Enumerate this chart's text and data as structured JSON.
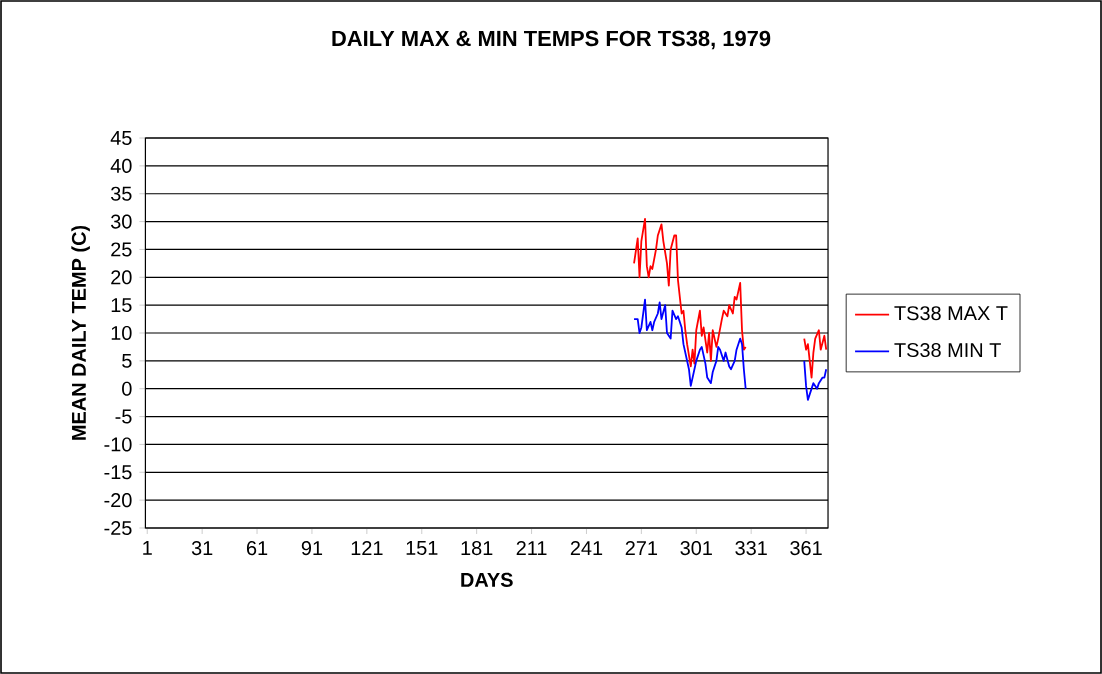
{
  "chart_data": {
    "type": "line",
    "title": "DAILY MAX & MIN TEMPS FOR TS38, 1979",
    "xlabel": "DAYS",
    "ylabel": "MEAN DAILY TEMP (C)",
    "xlim": [
      0,
      373
    ],
    "xticks": [
      1,
      31,
      61,
      91,
      121,
      151,
      181,
      211,
      241,
      271,
      301,
      331,
      361
    ],
    "ylim": [
      -25,
      45
    ],
    "yticks": [
      -25,
      -20,
      -15,
      -10,
      -5,
      0,
      5,
      10,
      15,
      20,
      25,
      30,
      35,
      40,
      45
    ],
    "grid": "y",
    "legend": "right",
    "marker": "none",
    "line_style": "solid",
    "series": [
      {
        "name": "TS38 MAX T",
        "color": "#ff0000",
        "x": [
          267,
          269,
          270,
          271,
          273,
          274,
          275,
          276,
          277,
          279,
          280,
          282,
          283,
          285,
          286,
          287,
          289,
          290,
          291,
          293,
          294,
          295,
          296,
          298,
          299,
          300,
          301,
          303,
          304,
          305,
          307,
          308,
          309,
          310,
          312,
          313,
          315,
          316,
          318,
          319,
          321,
          322,
          323,
          325,
          326,
          327,
          328,
          340,
          360,
          361,
          362,
          364,
          365,
          366,
          368,
          369,
          371,
          372
        ],
        "values": [
          22.5,
          27,
          20,
          26.5,
          30.5,
          22,
          20,
          22,
          21.5,
          25,
          27.5,
          29.5,
          26.5,
          22.5,
          18.5,
          25,
          27.5,
          27.5,
          19.5,
          13.5,
          14,
          10.5,
          8,
          4,
          7,
          4.5,
          10.5,
          14,
          9.5,
          11,
          6.5,
          10,
          5,
          10.5,
          7.5,
          9,
          12.5,
          14,
          13,
          15,
          13.5,
          16.5,
          16,
          19,
          10.5,
          7,
          7.5,
          null,
          9,
          7,
          8,
          2,
          6.5,
          9,
          10.5,
          7,
          9.5,
          7
        ]
      },
      {
        "name": "TS38 MIN T",
        "color": "#0000ff",
        "x": [
          267,
          269,
          270,
          271,
          273,
          274,
          276,
          277,
          278,
          280,
          281,
          282,
          284,
          285,
          287,
          288,
          290,
          291,
          293,
          294,
          295,
          297,
          298,
          300,
          301,
          303,
          304,
          306,
          307,
          309,
          310,
          312,
          313,
          314,
          316,
          317,
          319,
          320,
          322,
          323,
          325,
          326,
          327,
          328,
          340,
          360,
          361,
          362,
          364,
          365,
          367,
          368,
          370,
          371,
          372
        ],
        "values": [
          12.5,
          12.5,
          10,
          11,
          16,
          10.5,
          12,
          10.5,
          12,
          13.5,
          15.5,
          12.5,
          15,
          10,
          9,
          14,
          12.5,
          13,
          11,
          8,
          6.5,
          3.5,
          0.5,
          3.5,
          5,
          7,
          7.5,
          4.5,
          2,
          1,
          3,
          5,
          7.5,
          7,
          5,
          6.5,
          4,
          3.5,
          5,
          7,
          9,
          8,
          3.5,
          0,
          null,
          5,
          0.5,
          -2,
          0,
          1,
          0,
          1,
          2,
          2,
          3.5
        ]
      }
    ]
  }
}
